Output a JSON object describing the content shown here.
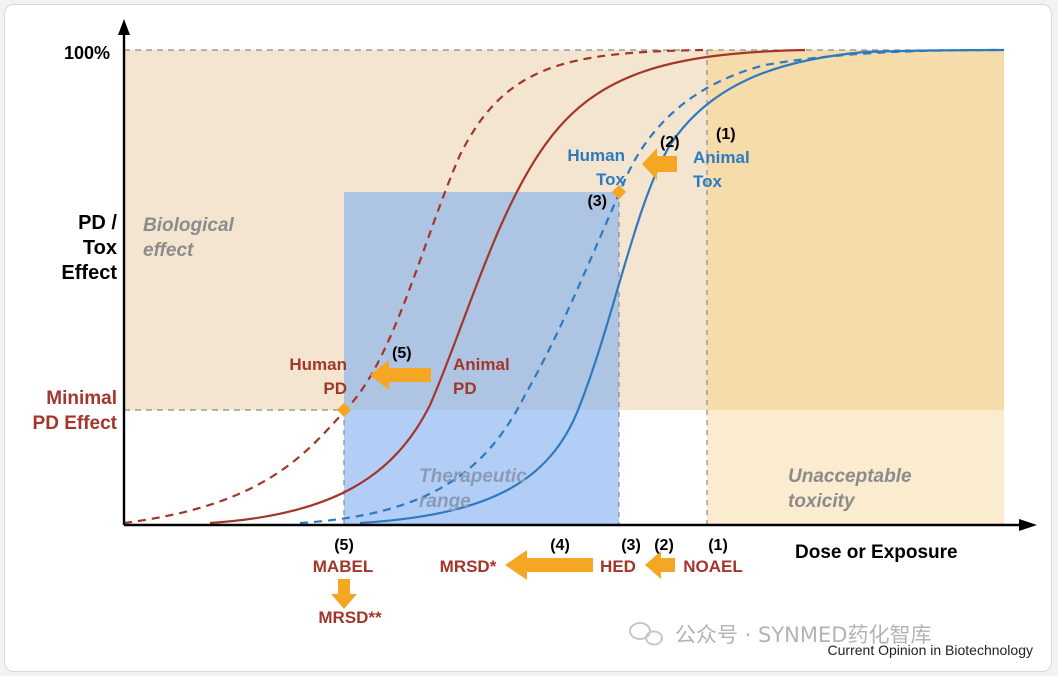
{
  "labels": {
    "y_top": "100%",
    "y_axis": [
      "PD /",
      "Tox",
      "Effect"
    ],
    "minimal_pd": [
      "Minimal",
      "PD Effect"
    ],
    "x_axis": "Dose or Exposure",
    "biological_effect": [
      "Biological",
      "effect"
    ],
    "therapeutic_range": [
      "Therapeutic",
      "range"
    ],
    "unacceptable_toxicity": [
      "Unacceptable",
      "toxicity"
    ],
    "human_tox": [
      "Human",
      "Tox"
    ],
    "animal_tox": [
      "Animal",
      "Tox"
    ],
    "human_pd": [
      "Human",
      "PD"
    ],
    "animal_pd": [
      "Animal",
      "PD"
    ]
  },
  "steps": {
    "s1": "(1)",
    "s2": "(2)",
    "s3": "(3)",
    "s4": "(4)",
    "s5": "(5)"
  },
  "dose_terms": {
    "mabel": "MABEL",
    "mrsd_2": "MRSD**",
    "mrsd_1": "MRSD*",
    "hed": "HED",
    "noael": "NOAEL"
  },
  "watermark": "公众号 · SYNMED药化智库",
  "source": "Current Opinion in Biotechnology",
  "colors": {
    "pd_red": "#a3362a",
    "tox_blue": "#2d7ac0",
    "arrow_orange": "#f5a623",
    "bio_region": "#f3e5cf",
    "tox_region": "#f7dcad",
    "therapeutic_region": "#8fb8ee"
  },
  "icons": {
    "watermark_logo": "wechat-icon"
  }
}
